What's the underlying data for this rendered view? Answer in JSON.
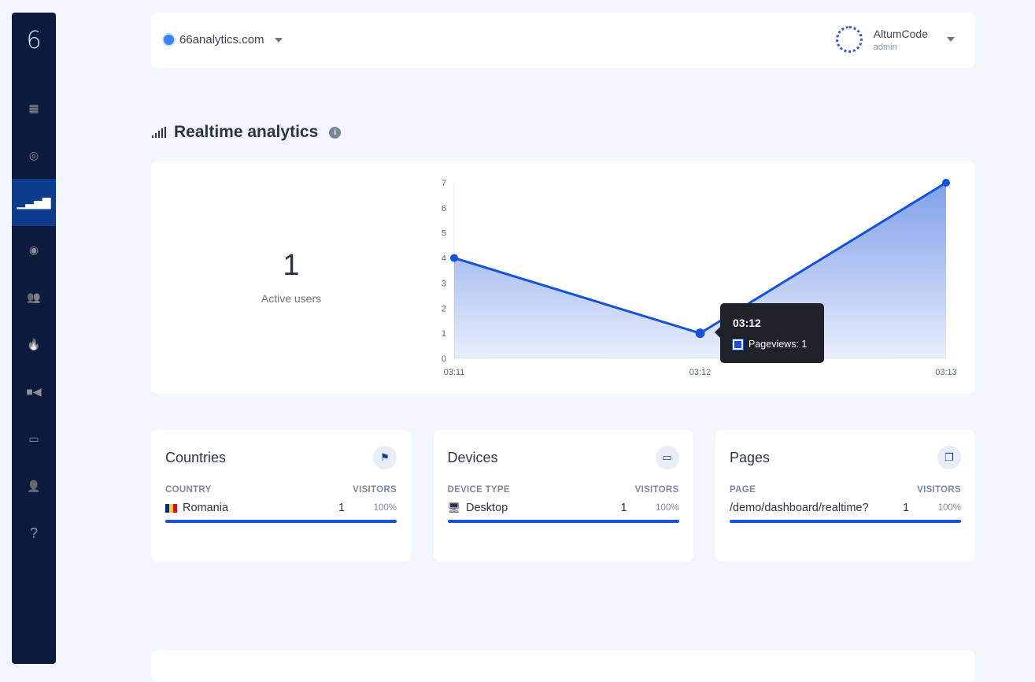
{
  "sidebar": {
    "logo": "6",
    "items": [
      {
        "name": "grid-icon",
        "glyph": "▦"
      },
      {
        "name": "target-icon",
        "glyph": "◎"
      },
      {
        "name": "signal-icon",
        "glyph": "▁▃▅▇",
        "active": true
      },
      {
        "name": "eye-icon",
        "glyph": "◉"
      },
      {
        "name": "users-icon",
        "glyph": "👥"
      },
      {
        "name": "fire-icon",
        "glyph": "🔥"
      },
      {
        "name": "video-icon",
        "glyph": "■◀"
      },
      {
        "name": "credit-card-icon",
        "glyph": "▭"
      },
      {
        "name": "user-shield-icon",
        "glyph": "👤"
      },
      {
        "name": "help-icon",
        "glyph": "?"
      }
    ]
  },
  "header": {
    "website": "66analytics.com",
    "user_name": "AltumCode",
    "user_role": "admin"
  },
  "page": {
    "title": "Realtime analytics",
    "info": "i"
  },
  "realtime": {
    "active_users": "1",
    "active_users_label": "Active users"
  },
  "tooltip": {
    "title": "03:12",
    "label": "Pageviews: 1"
  },
  "chart_data": {
    "type": "area",
    "x": [
      "03:11",
      "03:12",
      "03:13"
    ],
    "series": [
      {
        "name": "Pageviews",
        "values": [
          4,
          1,
          7
        ]
      }
    ],
    "ylim": [
      0,
      7
    ],
    "yticks": [
      0,
      1,
      2,
      3,
      4,
      5,
      6,
      7
    ],
    "color": "#1652d9"
  },
  "cards": [
    {
      "title": "Countries",
      "icon": "flag-icon",
      "col1": "COUNTRY",
      "col2": "VISITORS",
      "rows": [
        {
          "label": "Romania",
          "value": "1",
          "percent": "100%",
          "fraction": 1
        }
      ]
    },
    {
      "title": "Devices",
      "icon": "laptop-icon",
      "col1": "DEVICE TYPE",
      "col2": "VISITORS",
      "rows": [
        {
          "label": "Desktop",
          "value": "1",
          "percent": "100%",
          "fraction": 1
        }
      ]
    },
    {
      "title": "Pages",
      "icon": "copy-icon",
      "col1": "PAGE",
      "col2": "VISITORS",
      "rows": [
        {
          "label": "/demo/dashboard/realtime?",
          "value": "1",
          "percent": "100%",
          "fraction": 1
        }
      ]
    }
  ]
}
